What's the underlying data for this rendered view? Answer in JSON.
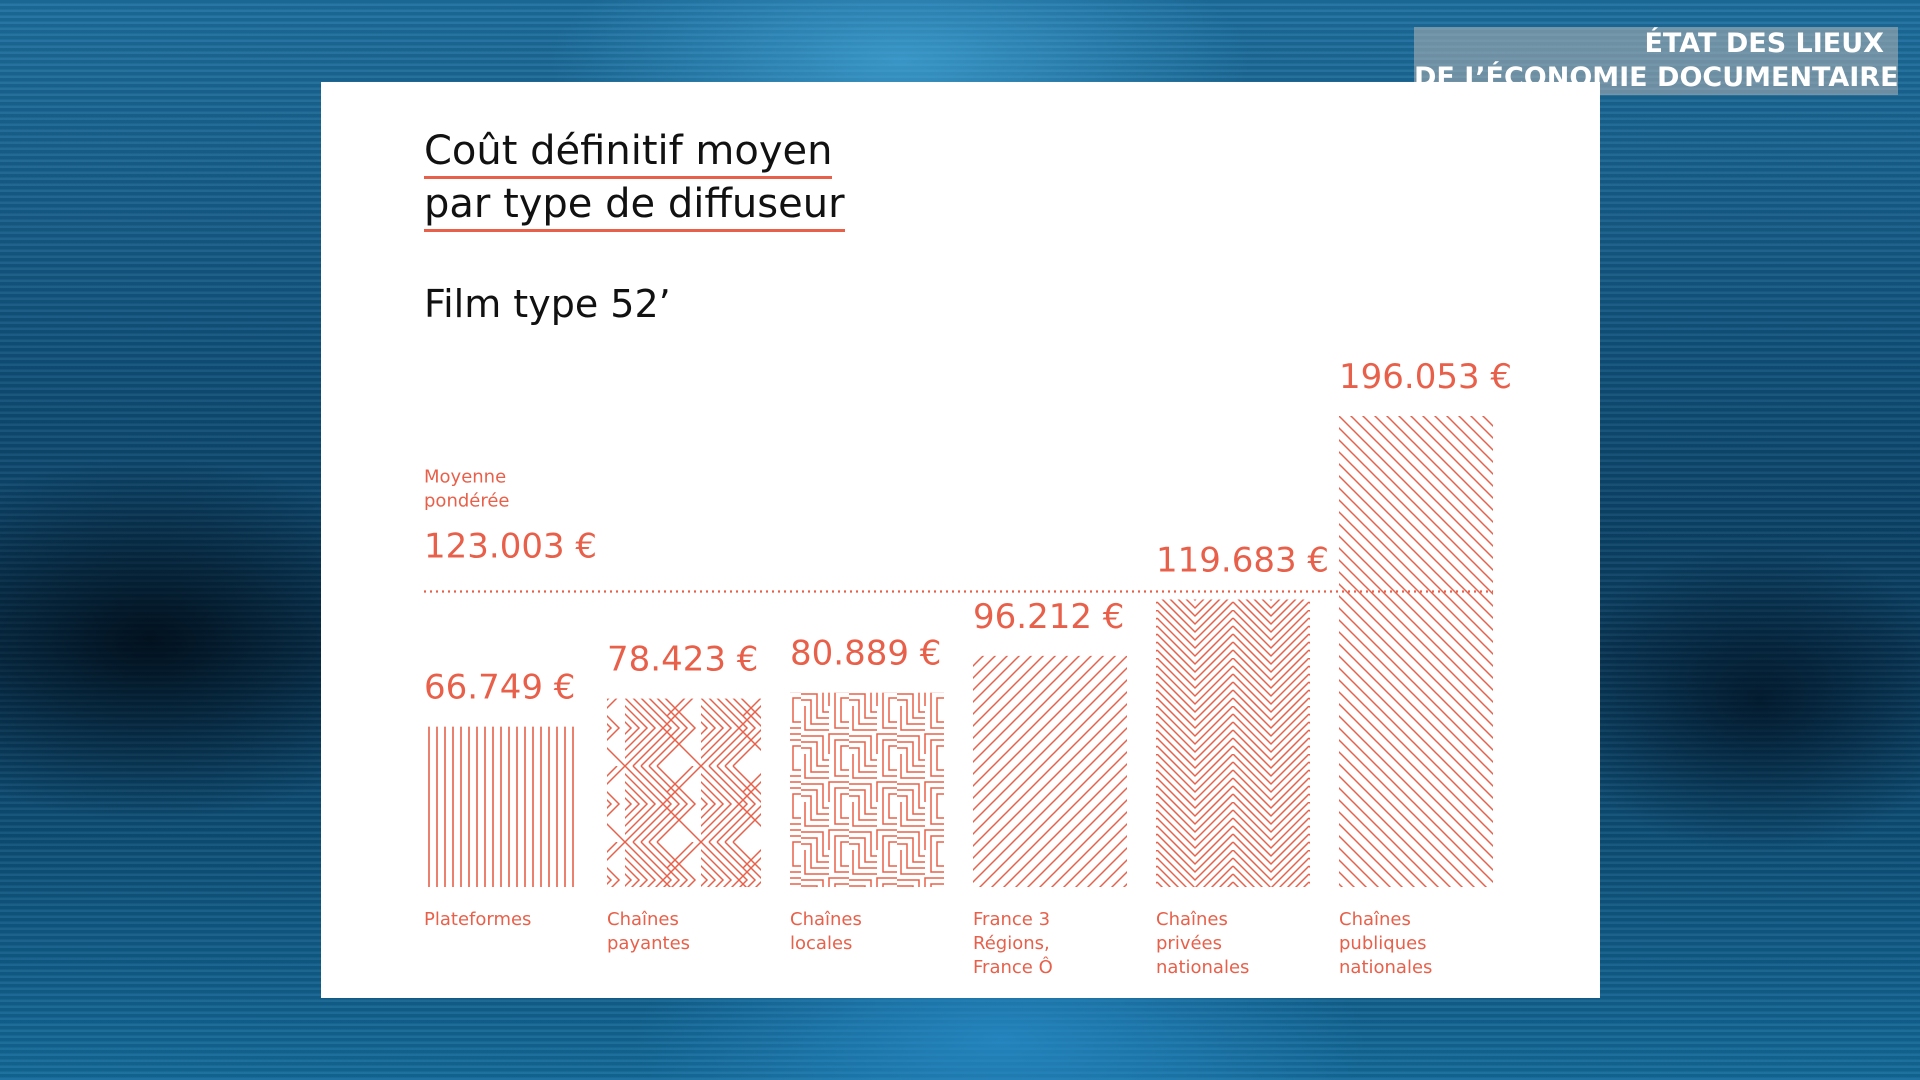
{
  "header": {
    "line1": "ÉTAT DES LIEUX",
    "line2": "DE L’ÉCONOMIE DOCUMENTAIRE"
  },
  "colors": {
    "accent": "#e8604a",
    "text": "#111111",
    "card": "#ffffff"
  },
  "chart_data": {
    "type": "bar",
    "title_line1": "Coût définitif moyen",
    "title_line2": "par type de diffuseur",
    "subtitle": "Film type 52’",
    "categories": [
      [
        "Plateformes"
      ],
      [
        "Chaînes",
        "payantes"
      ],
      [
        "Chaînes",
        "locales"
      ],
      [
        "France 3",
        "Régions,",
        "France Ô"
      ],
      [
        "Chaînes",
        "privées",
        "nationales"
      ],
      [
        "Chaînes",
        "publiques",
        "nationales"
      ]
    ],
    "values": [
      66749,
      78423,
      80889,
      96212,
      119683,
      196053
    ],
    "value_labels": [
      "66.749 €",
      "78.423 €",
      "80.889 €",
      "96.212 €",
      "119.683 €",
      "196.053 €"
    ],
    "patterns": [
      "vertical",
      "chevron-horizontal",
      "maze",
      "diagonal",
      "chevron-vertical",
      "diagonal-back"
    ],
    "reference_line": {
      "value": 123003,
      "label_line1": "Moyenne",
      "label_line2": "pondérée",
      "value_label": "123.003 €",
      "style": "dotted"
    },
    "ylim": [
      0,
      196053
    ]
  }
}
